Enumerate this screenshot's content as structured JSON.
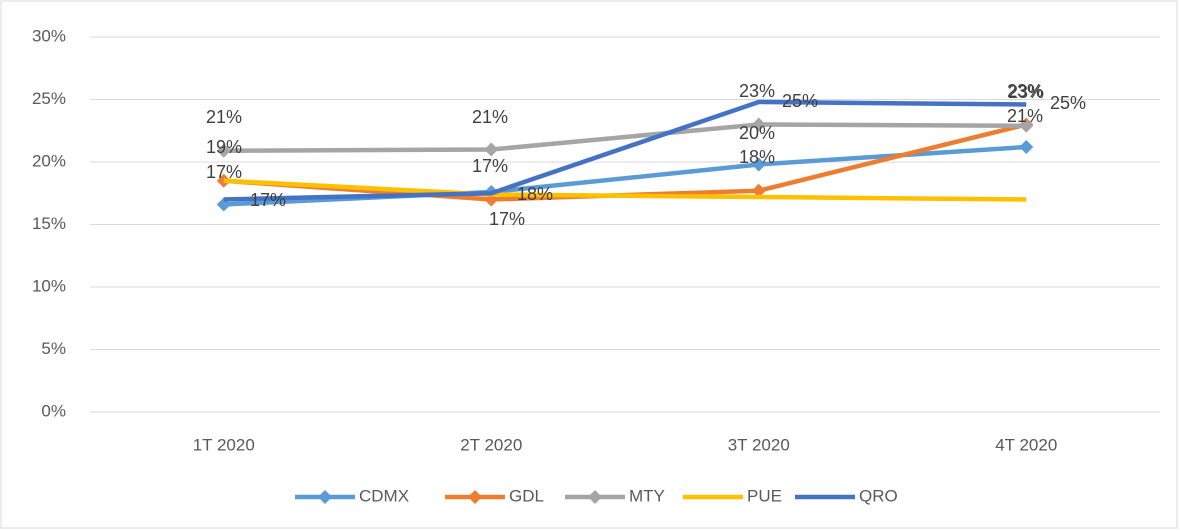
{
  "chart_data": {
    "type": "line",
    "categories": [
      "1T 2020",
      "2T 2020",
      "3T 2020",
      "4T 2020"
    ],
    "series": [
      {
        "name": "CDMX",
        "color": "#5b9bd5",
        "values": [
          16.6,
          17.6,
          19.8,
          21.2
        ]
      },
      {
        "name": "GDL",
        "color": "#ed7d31",
        "values": [
          18.5,
          17.0,
          17.7,
          23.0
        ]
      },
      {
        "name": "MTY",
        "color": "#a5a5a5",
        "values": [
          20.9,
          21.0,
          23.0,
          22.9
        ]
      },
      {
        "name": "PUE",
        "color": "#ffc000",
        "values": [
          18.5,
          17.4,
          17.2,
          17.0
        ]
      },
      {
        "name": "QRO",
        "color": "#4472c4",
        "values": [
          17.0,
          17.5,
          24.8,
          24.6
        ]
      }
    ],
    "markers": [
      true,
      true,
      true,
      false,
      false
    ],
    "ylim": [
      0,
      30
    ],
    "yticks": [
      {
        "value": 0,
        "label": "0%"
      },
      {
        "value": 5,
        "label": "5%"
      },
      {
        "value": 10,
        "label": "10%"
      },
      {
        "value": 15,
        "label": "15%"
      },
      {
        "value": 20,
        "label": "20%"
      },
      {
        "value": 25,
        "label": "25%"
      },
      {
        "value": 30,
        "label": "30%"
      }
    ],
    "grid": true,
    "legend": "bottom",
    "annotations": [
      "21%",
      "19%",
      "17%",
      "17%",
      "21%",
      "17%",
      "18%",
      "17%",
      "23%",
      "25%",
      "20%",
      "18%",
      "23%",
      "23%",
      "21%",
      "25%"
    ]
  }
}
